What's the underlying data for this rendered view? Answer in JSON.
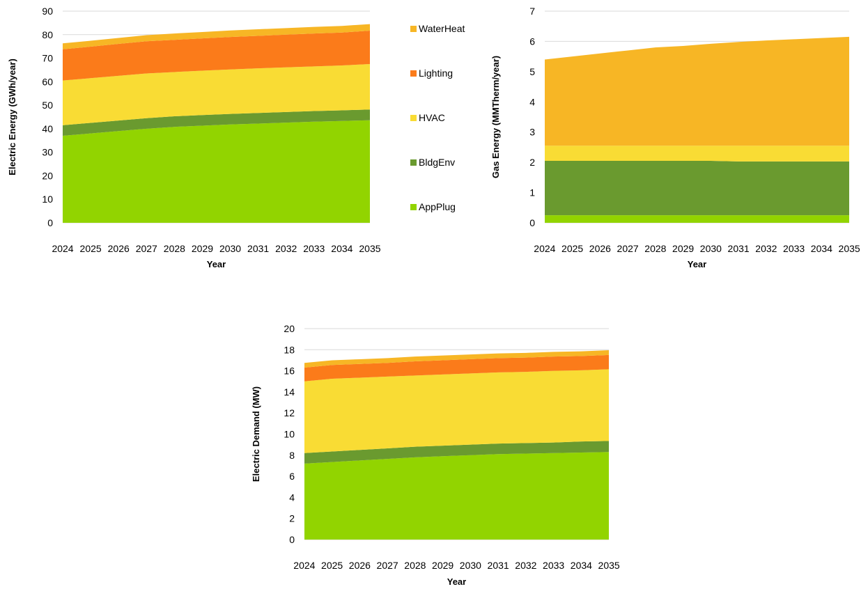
{
  "colors": {
    "AppPlug": "#92d400",
    "BldgEnv": "#6a9a2f",
    "HVAC": "#f9dc34",
    "Lighting": "#fb7b1a",
    "WaterHeat": "#f7b625",
    "grid": "#d9d9d9"
  },
  "legend": {
    "placement": "right of first chart",
    "entries": [
      "WaterHeat",
      "Lighting",
      "HVAC",
      "BldgEnv",
      "AppPlug"
    ]
  },
  "chart_data": [
    {
      "type": "area",
      "stacked": true,
      "xlabel": "Year",
      "ylabel": "Electric Energy (GWh/year)",
      "ylim": [
        0,
        90
      ],
      "yticks": [
        "0",
        "10",
        "20",
        "30",
        "40",
        "50",
        "60",
        "70",
        "80",
        "90"
      ],
      "grid": true,
      "categories": [
        "2024",
        "2025",
        "2026",
        "2027",
        "2028",
        "2029",
        "2030",
        "2031",
        "2032",
        "2033",
        "2034",
        "2035"
      ],
      "series": [
        {
          "name": "AppPlug",
          "values": [
            37,
            38,
            39,
            40,
            40.8,
            41.3,
            41.8,
            42.2,
            42.6,
            43,
            43.3,
            43.6
          ]
        },
        {
          "name": "BldgEnv",
          "values": [
            4.5,
            4.5,
            4.5,
            4.5,
            4.5,
            4.5,
            4.5,
            4.5,
            4.5,
            4.5,
            4.5,
            4.6
          ]
        },
        {
          "name": "HVAC",
          "values": [
            19,
            19,
            19,
            19,
            18.8,
            18.9,
            18.9,
            19,
            19,
            19,
            19.1,
            19.3
          ]
        },
        {
          "name": "Lighting",
          "values": [
            13.3,
            13.4,
            13.6,
            13.7,
            13.7,
            13.7,
            13.8,
            13.8,
            13.9,
            14,
            14,
            14.2
          ]
        },
        {
          "name": "WaterHeat",
          "values": [
            2.5,
            2.5,
            2.5,
            2.6,
            2.7,
            2.7,
            2.8,
            2.8,
            2.8,
            2.8,
            2.8,
            2.8
          ]
        }
      ]
    },
    {
      "type": "area",
      "stacked": true,
      "xlabel": "Year",
      "ylabel": "Gas Energy (MMTherm/year)",
      "ylim": [
        0,
        7
      ],
      "yticks": [
        "0",
        "1",
        "2",
        "3",
        "4",
        "5",
        "6",
        "7"
      ],
      "grid": true,
      "categories": [
        "2024",
        "2025",
        "2026",
        "2027",
        "2028",
        "2029",
        "2030",
        "2031",
        "2032",
        "2033",
        "2034",
        "2035"
      ],
      "series": [
        {
          "name": "AppPlug",
          "values": [
            0.25,
            0.25,
            0.25,
            0.25,
            0.25,
            0.25,
            0.25,
            0.25,
            0.25,
            0.25,
            0.25,
            0.25
          ]
        },
        {
          "name": "BldgEnv",
          "values": [
            1.8,
            1.8,
            1.8,
            1.8,
            1.8,
            1.8,
            1.8,
            1.78,
            1.78,
            1.78,
            1.78,
            1.78
          ]
        },
        {
          "name": "HVAC",
          "values": [
            0.5,
            0.5,
            0.5,
            0.5,
            0.5,
            0.5,
            0.5,
            0.52,
            0.52,
            0.52,
            0.52,
            0.52
          ]
        },
        {
          "name": "Lighting",
          "values": [
            0,
            0,
            0,
            0,
            0,
            0,
            0,
            0,
            0,
            0,
            0,
            0
          ]
        },
        {
          "name": "WaterHeat",
          "values": [
            2.85,
            2.95,
            3.05,
            3.15,
            3.25,
            3.3,
            3.37,
            3.43,
            3.48,
            3.52,
            3.56,
            3.6
          ]
        }
      ]
    },
    {
      "type": "area",
      "stacked": true,
      "xlabel": "Year",
      "ylabel": "Electric Demand (MW)",
      "ylim": [
        0,
        20
      ],
      "yticks": [
        "0",
        "2",
        "4",
        "6",
        "8",
        "10",
        "12",
        "14",
        "16",
        "18",
        "20"
      ],
      "grid": true,
      "categories": [
        "2024",
        "2025",
        "2026",
        "2027",
        "2028",
        "2029",
        "2030",
        "2031",
        "2032",
        "2033",
        "2034",
        "2035"
      ],
      "series": [
        {
          "name": "AppPlug",
          "values": [
            7.2,
            7.35,
            7.5,
            7.65,
            7.8,
            7.9,
            8,
            8.1,
            8.15,
            8.2,
            8.25,
            8.3
          ]
        },
        {
          "name": "BldgEnv",
          "values": [
            1,
            1,
            1,
            1,
            1,
            1,
            1,
            1,
            1,
            1,
            1.05,
            1.05
          ]
        },
        {
          "name": "HVAC",
          "values": [
            6.8,
            6.9,
            6.85,
            6.8,
            6.75,
            6.75,
            6.75,
            6.75,
            6.75,
            6.8,
            6.75,
            6.8
          ]
        },
        {
          "name": "Lighting",
          "values": [
            1.3,
            1.3,
            1.3,
            1.3,
            1.35,
            1.35,
            1.35,
            1.35,
            1.35,
            1.35,
            1.35,
            1.35
          ]
        },
        {
          "name": "WaterHeat",
          "values": [
            0.45,
            0.45,
            0.45,
            0.45,
            0.45,
            0.45,
            0.45,
            0.45,
            0.45,
            0.45,
            0.45,
            0.45
          ]
        }
      ]
    }
  ]
}
